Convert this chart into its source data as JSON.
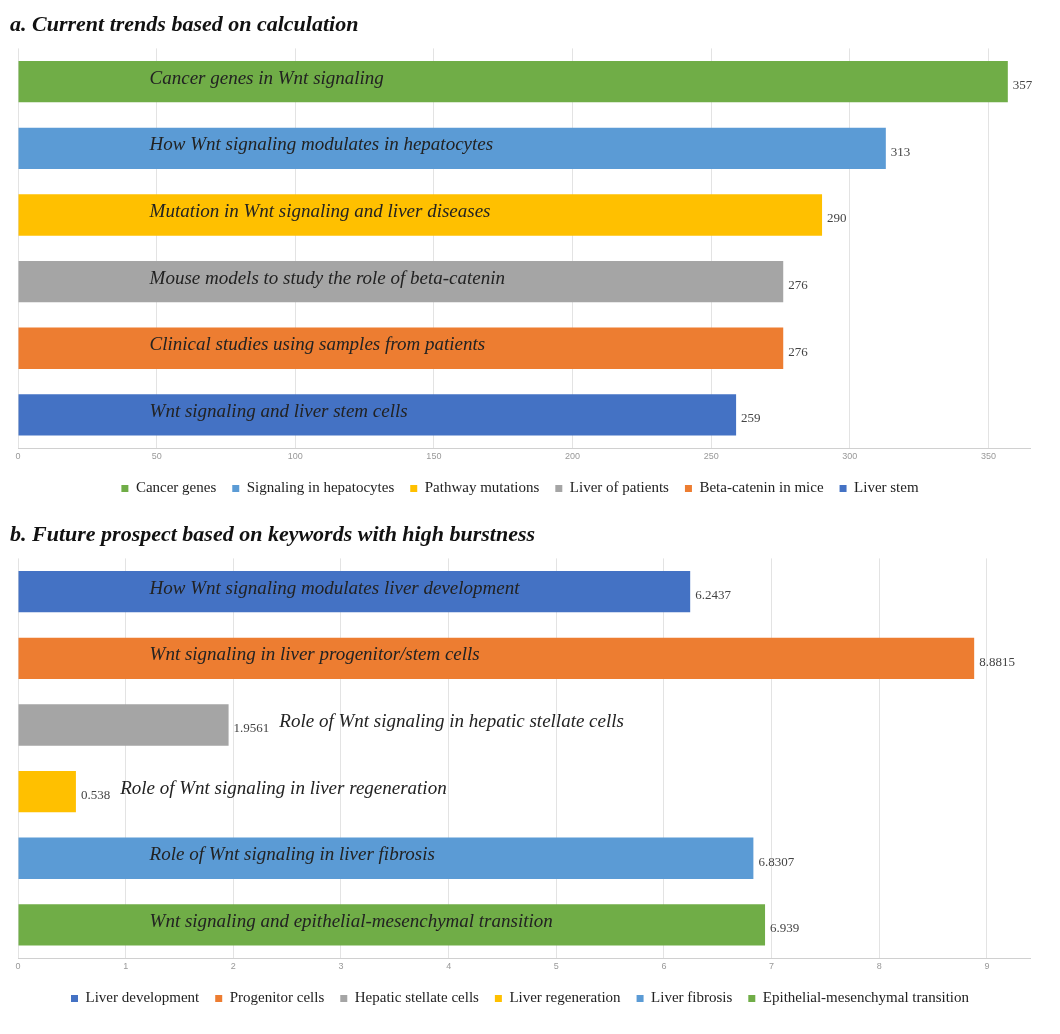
{
  "chart_data": [
    {
      "type": "bar",
      "orientation": "horizontal",
      "title": "a. Current trends based on calculation",
      "categories": [
        "Cancer genes in Wnt signaling",
        "How Wnt signaling modulates in hepatocytes",
        "Mutation in Wnt signaling and liver diseases",
        "Mouse models to study the role of beta-catenin",
        "Clinical studies using samples from patients",
        "Wnt signaling and liver stem cells"
      ],
      "series": [
        {
          "name": "Cancer genes",
          "color": "#70ad47",
          "values": [
            357,
            null,
            null,
            null,
            null,
            null
          ]
        },
        {
          "name": "Signaling in hepatocytes",
          "color": "#5b9bd5",
          "values": [
            null,
            313,
            null,
            null,
            null,
            null
          ]
        },
        {
          "name": "Pathway mutations",
          "color": "#ffc000",
          "values": [
            null,
            null,
            290,
            null,
            null,
            null
          ]
        },
        {
          "name": "Liver of patients",
          "color": "#a5a5a5",
          "values": [
            null,
            null,
            null,
            276,
            null,
            null
          ]
        },
        {
          "name": "Beta-catenin in mice",
          "color": "#ed7d31",
          "values": [
            null,
            null,
            null,
            null,
            276,
            null
          ]
        },
        {
          "name": "Liver stem",
          "color": "#4472c4",
          "values": [
            null,
            null,
            null,
            null,
            null,
            259
          ]
        }
      ],
      "xlim": [
        0,
        365
      ],
      "xticks": [
        0,
        50,
        100,
        150,
        200,
        250,
        300,
        350
      ],
      "grid": "x",
      "legend": "bottom",
      "tick_labels": "x",
      "data_labels": true
    },
    {
      "type": "bar",
      "orientation": "horizontal",
      "title": "b. Future prospect based on keywords with high burstness",
      "categories": [
        "How Wnt signaling modulates liver development",
        "Wnt signaling in liver progenitor/stem cells",
        "Role of Wnt signaling in hepatic stellate cells",
        "Role of Wnt signaling in liver regeneration",
        "Role of Wnt signaling in liver fibrosis",
        "Wnt signaling and epithelial-mesenchymal transition"
      ],
      "series": [
        {
          "name": "Liver development",
          "color": "#4472c4",
          "values": [
            6.2437,
            null,
            null,
            null,
            null,
            null
          ]
        },
        {
          "name": "Progenitor cells",
          "color": "#ed7d31",
          "values": [
            null,
            8.8815,
            null,
            null,
            null,
            null
          ]
        },
        {
          "name": "Hepatic stellate cells",
          "color": "#a5a5a5",
          "values": [
            null,
            null,
            1.9561,
            null,
            null,
            null
          ]
        },
        {
          "name": "Liver regeneration",
          "color": "#ffc000",
          "values": [
            null,
            null,
            null,
            0.538,
            null,
            null
          ]
        },
        {
          "name": "Liver fibrosis",
          "color": "#5b9bd5",
          "values": [
            null,
            null,
            null,
            null,
            6.8307,
            null
          ]
        },
        {
          "name": "Epithelial-mesenchymal transition",
          "color": "#70ad47",
          "values": [
            null,
            null,
            null,
            null,
            null,
            6.939
          ]
        }
      ],
      "xlim": [
        0,
        9.4
      ],
      "xticks": [
        0,
        1,
        2,
        3,
        4,
        5,
        6,
        7,
        8,
        9
      ],
      "grid": "x",
      "legend": "bottom",
      "tick_labels": "x",
      "data_labels": true
    }
  ]
}
